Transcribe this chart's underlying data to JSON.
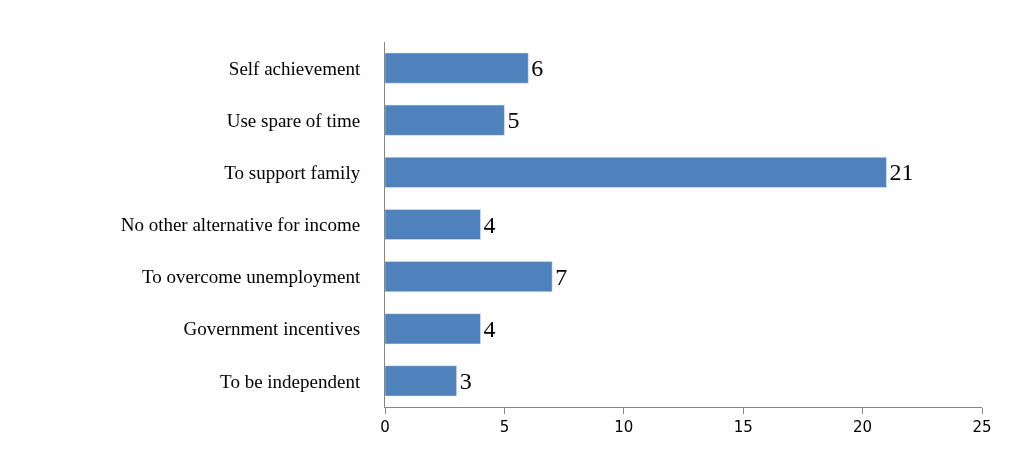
{
  "chart_data": {
    "type": "bar",
    "orientation": "horizontal",
    "categories": [
      "Self achievement",
      "Use spare of time",
      "To support family",
      "No other alternative for income",
      "To overcome unemployment",
      "Government incentives",
      "To be independent"
    ],
    "values": [
      6,
      5,
      21,
      4,
      7,
      4,
      3
    ],
    "color": "#4f81bd",
    "xlim": [
      0,
      25
    ],
    "xticks": [
      0,
      5,
      10,
      15,
      20,
      25
    ],
    "data_labels": true
  }
}
